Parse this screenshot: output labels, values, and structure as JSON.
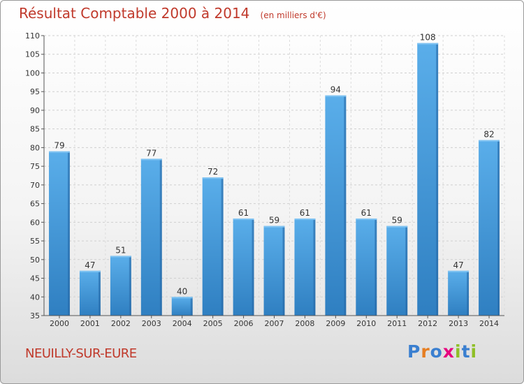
{
  "header": {
    "title": "Résultat Comptable 2000 à 2014",
    "unit": "(en milliers d'€)"
  },
  "footer": {
    "commune": "NEUILLY-SUR-EURE",
    "logo_letters": [
      "P",
      "r",
      "o",
      "x",
      "i",
      "t",
      "i"
    ],
    "logo_colors": [
      "#3a7fd0",
      "#e67e22",
      "#3a7fd0",
      "#e6007e",
      "#8fbf26",
      "#3a7fd0",
      "#8fbf26"
    ]
  },
  "chart_data": {
    "type": "bar",
    "title": "Résultat Comptable 2000 à 2014",
    "subtitle": "(en milliers d'€)",
    "categories": [
      "2000",
      "2001",
      "2002",
      "2003",
      "2004",
      "2005",
      "2006",
      "2007",
      "2008",
      "2009",
      "2010",
      "2011",
      "2012",
      "2013",
      "2014"
    ],
    "values": [
      79,
      47,
      51,
      77,
      40,
      72,
      61,
      59,
      61,
      94,
      61,
      59,
      108,
      47,
      82
    ],
    "ylim": [
      35,
      110
    ],
    "yticks": [
      35,
      40,
      45,
      50,
      55,
      60,
      65,
      70,
      75,
      80,
      85,
      90,
      95,
      100,
      105,
      110
    ],
    "grid": true,
    "bar_color": "#4a9ede",
    "data_labels": true
  }
}
